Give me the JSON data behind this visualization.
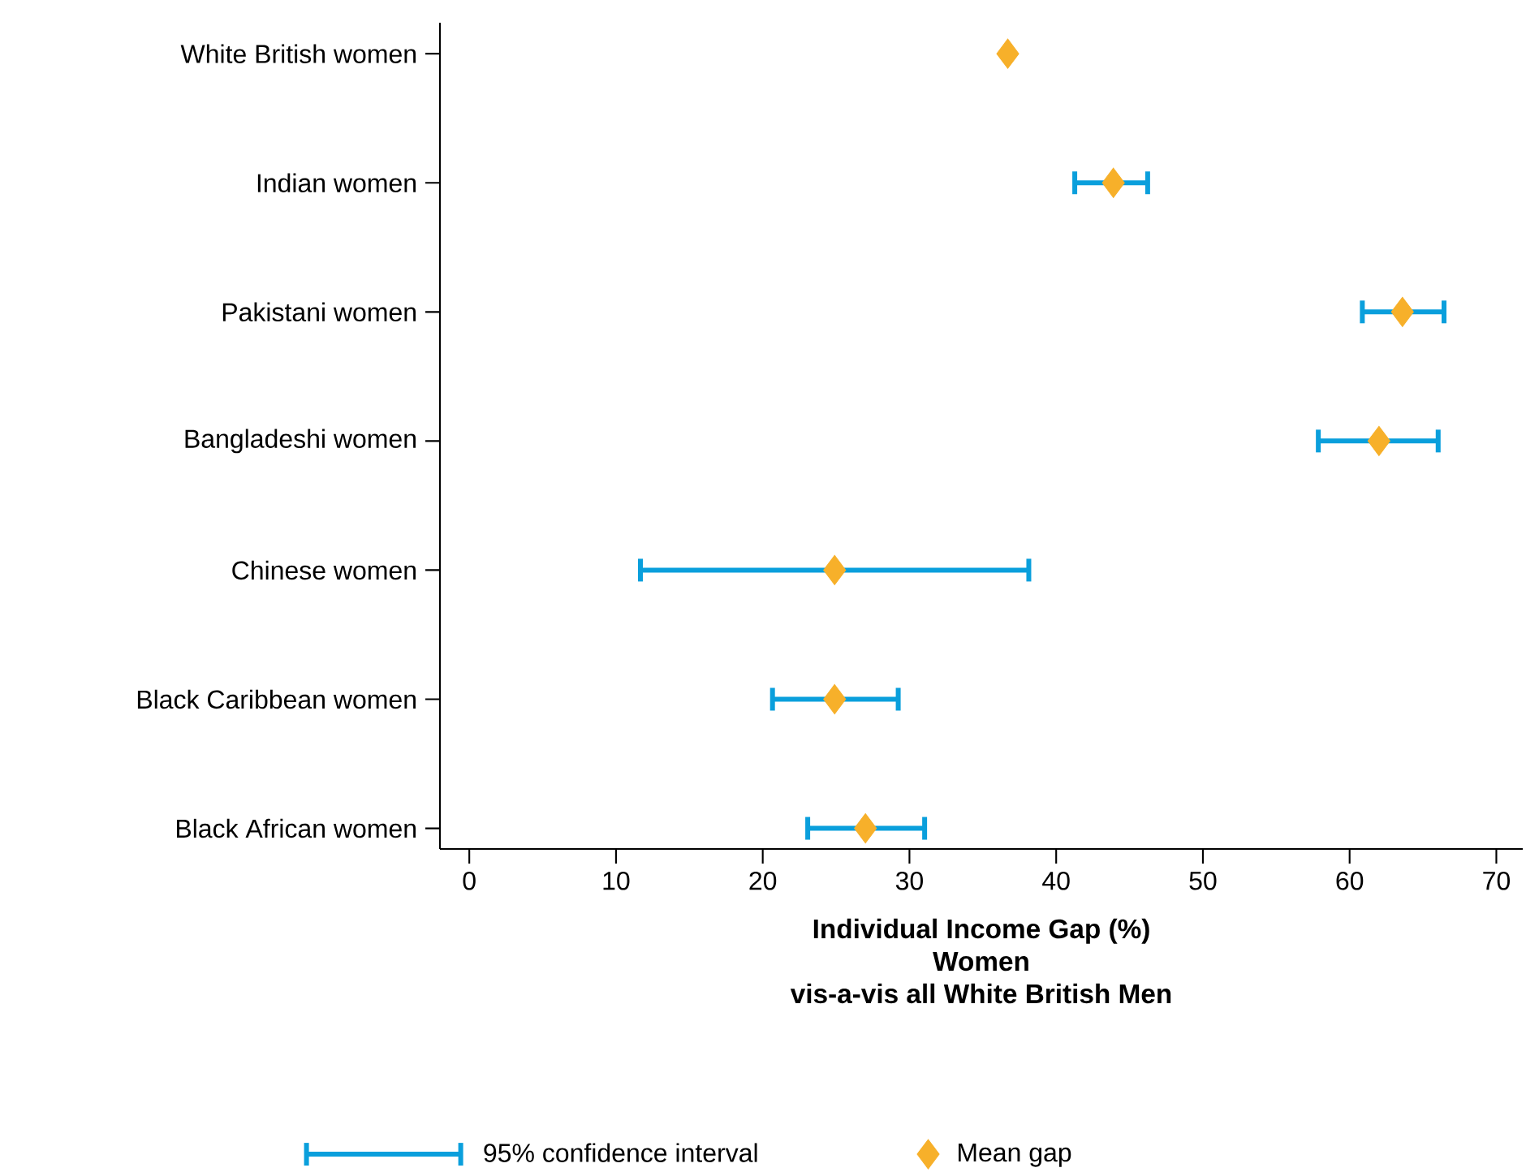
{
  "chart_data": {
    "type": "scatter",
    "orientation": "horizontal",
    "categories": [
      "White British women",
      "Indian women",
      "Pakistani women",
      "Bangladeshi women",
      "Chinese women",
      "Black Caribbean women",
      "Black African women"
    ],
    "xlabel": "Individual Income Gap (%)\nWomen\nvis-a-vis all White British Men",
    "xlim": [
      -2,
      71.8
    ],
    "xticks": [
      0,
      10,
      20,
      30,
      40,
      50,
      60,
      70
    ],
    "grid": false,
    "legend": "bottom",
    "marker": "diamond",
    "annotations": [
      "95% confidence interval"
    ],
    "series": [
      {
        "name": "Mean gap",
        "color": "#f7b02a",
        "values": [
          36.7,
          43.9,
          63.6,
          62.0,
          24.9,
          24.9,
          27.0
        ],
        "errors": [
          null,
          [
            41.1,
            46.4
          ],
          [
            60.7,
            66.6
          ],
          [
            57.7,
            66.2
          ],
          [
            11.5,
            38.3
          ],
          [
            20.5,
            29.4
          ],
          [
            22.9,
            31.2
          ]
        ]
      }
    ]
  }
}
